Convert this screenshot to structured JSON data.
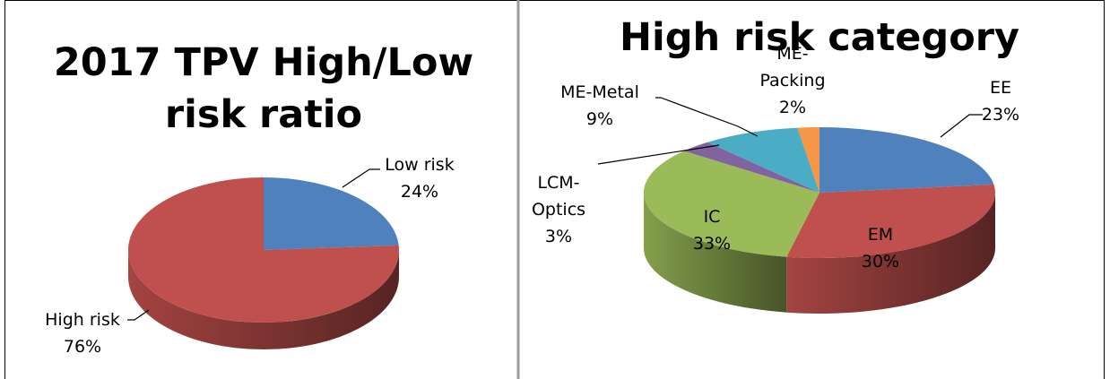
{
  "chart_data": [
    {
      "type": "pie",
      "title_lines": [
        "2017 TPV High/Low",
        "risk ratio"
      ],
      "three_d": true,
      "slices": [
        {
          "label": "Low risk",
          "percent_label": "24%",
          "value": 24,
          "color": "#4F81BD"
        },
        {
          "label": "High risk",
          "percent_label": "76%",
          "value": 76,
          "color": "#C0504D"
        }
      ]
    },
    {
      "type": "pie",
      "title_lines": [
        "High risk category"
      ],
      "three_d": true,
      "slices": [
        {
          "label": "EE",
          "percent_label": "23%",
          "value": 23,
          "color": "#4F81BD"
        },
        {
          "label": "EM",
          "percent_label": "30%",
          "value": 30,
          "color": "#C0504D"
        },
        {
          "label": "IC",
          "percent_label": "33%",
          "value": 33,
          "color": "#9BBB59"
        },
        {
          "label": "LCM-Optics",
          "label_lines": [
            "LCM-",
            "Optics"
          ],
          "percent_label": "3%",
          "value": 3,
          "color": "#8064A2"
        },
        {
          "label": "ME-Metal",
          "percent_label": "9%",
          "value": 9,
          "color": "#4BACC6"
        },
        {
          "label": "ME-Packing",
          "label_lines": [
            "ME-",
            "Packing"
          ],
          "percent_label": "2%",
          "value": 2,
          "color": "#F79646"
        }
      ]
    }
  ]
}
